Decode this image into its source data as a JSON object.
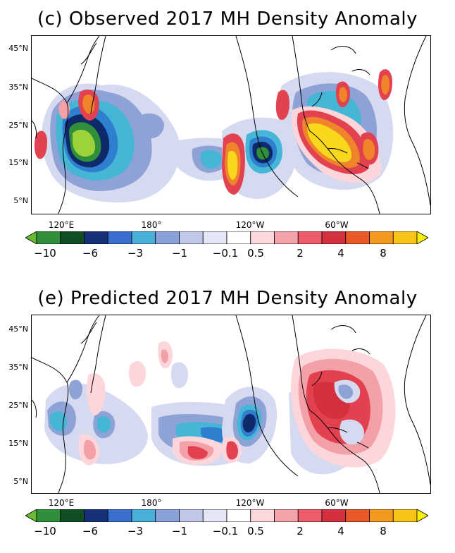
{
  "panels": [
    {
      "title": "(c) Observed 2017 MH Density Anomaly"
    },
    {
      "title": "(e) Predicted 2017 MH Density Anomaly"
    }
  ],
  "lat_ticks": [
    "45°N",
    "35°N",
    "25°N",
    "15°N",
    "5°N"
  ],
  "lon_ticks": [
    "120°E",
    "180°",
    "120°W",
    "60°W"
  ],
  "colorbar": {
    "labels": [
      "−10",
      "−6",
      "−3",
      "−1",
      "−0.1",
      "0.5",
      "2",
      "4",
      "8"
    ],
    "colors": [
      "#66bb33",
      "#2f8f3a",
      "#114d22",
      "#16307a",
      "#3a6fd0",
      "#48b0d8",
      "#8aa0d8",
      "#c0c8ea",
      "#e4e6f5",
      "#ffffff",
      "#fcd8dc",
      "#f4a3ab",
      "#ee5c6c",
      "#d4303e",
      "#ea5a28",
      "#f39a1e",
      "#f8c418",
      "#f8f000"
    ]
  },
  "colors": {
    "neg_extreme": "#9ed23a",
    "neg_green": "#2f8f3a",
    "neg_dark": "#0f2a6a",
    "neg_blue": "#2f7fd0",
    "neg_cyan": "#46b6d6",
    "neg_light": "#8fa2d6",
    "neg_faint": "#d6daf0",
    "pos_faint": "#fcd6da",
    "pos_light": "#f4a0a8",
    "pos_red": "#e2414f",
    "pos_orange": "#f0842a",
    "pos_yellow": "#f8d81c",
    "coast": "#000000"
  }
}
